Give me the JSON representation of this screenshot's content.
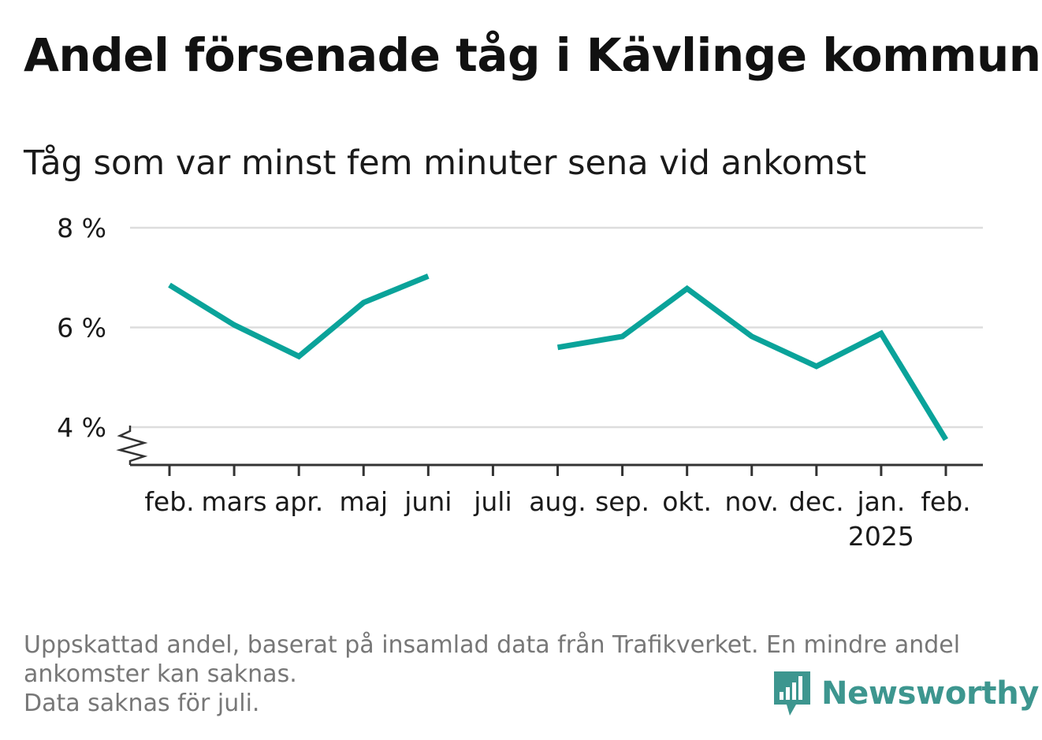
{
  "header": {
    "title": "Andel försenade tåg i Kävlinge kommun",
    "subtitle": "Tåg som var minst fem minuter sena vid ankomst"
  },
  "footnote": {
    "line1": "Uppskattad andel, baserat på insamlad data från Trafikverket. En mindre andel",
    "line2": "ankomster kan saknas.",
    "line3": "Data saknas för juli."
  },
  "brand": {
    "name": "Newsworthy",
    "icon": "newsworthy-logo-icon",
    "color": "#3d968f"
  },
  "colors": {
    "line": "#0aa39a",
    "grid": "#dddddd",
    "axis": "#333333"
  },
  "chart_data": {
    "type": "line",
    "title": "Andel försenade tåg i Kävlinge kommun",
    "subtitle": "Tåg som var minst fem minuter sena vid ankomst",
    "categories": [
      "feb.",
      "mars",
      "apr.",
      "maj",
      "juni",
      "juli",
      "aug.",
      "sep.",
      "okt.",
      "nov.",
      "dec.",
      "jan.",
      "feb."
    ],
    "year_labels": [
      "",
      "",
      "",
      "",
      "",
      "",
      "",
      "",
      "",
      "",
      "",
      "2025",
      ""
    ],
    "series": [
      {
        "values": [
          6.85,
          6.05,
          5.42,
          6.5,
          7.03,
          null,
          5.6,
          5.82,
          6.78,
          5.82,
          5.22,
          5.88,
          3.75
        ]
      }
    ],
    "yticks": [
      4,
      6,
      8
    ],
    "ytick_labels": [
      "4 %",
      "6 %",
      "8 %"
    ],
    "ylim": [
      3.25,
      8
    ],
    "axis_break": true,
    "grid": true,
    "legend": "none"
  }
}
